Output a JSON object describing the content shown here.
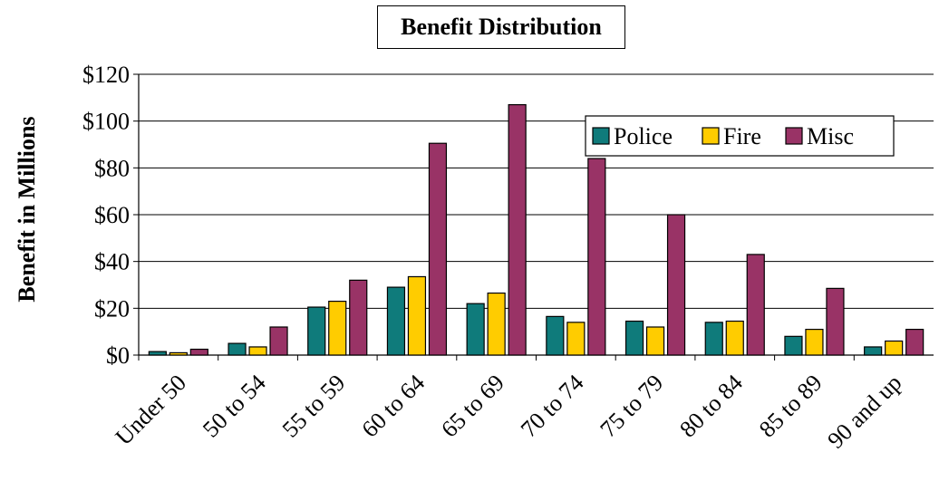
{
  "chart_data": {
    "type": "bar",
    "title": "Benefit Distribution",
    "xlabel": "",
    "ylabel": "Benefit in Millions",
    "ylim": [
      0,
      120
    ],
    "yticks": [
      "$0",
      "$20",
      "$40",
      "$60",
      "$80",
      "$100",
      "$120"
    ],
    "ytick_values": [
      0,
      20,
      40,
      60,
      80,
      100,
      120
    ],
    "grid": true,
    "legend_position": "top-right",
    "categories": [
      "Under 50",
      "50 to 54",
      "55 to 59",
      "60 to 64",
      "65 to 69",
      "70 to 74",
      "75 to 79",
      "80 to 84",
      "85 to 89",
      "90 and up"
    ],
    "series": [
      {
        "name": "Police",
        "color": "#0f7b7b",
        "values": [
          1.5,
          5,
          20.5,
          29,
          22,
          16.5,
          14.5,
          14,
          8,
          3.5
        ]
      },
      {
        "name": "Fire",
        "color": "#ffcc00",
        "values": [
          1,
          3.5,
          23,
          33.5,
          26.5,
          14,
          12,
          14.5,
          11,
          6
        ]
      },
      {
        "name": "Misc",
        "color": "#993366",
        "values": [
          2.5,
          12,
          32,
          90.5,
          107,
          84,
          60,
          43,
          28.5,
          11
        ]
      }
    ]
  }
}
